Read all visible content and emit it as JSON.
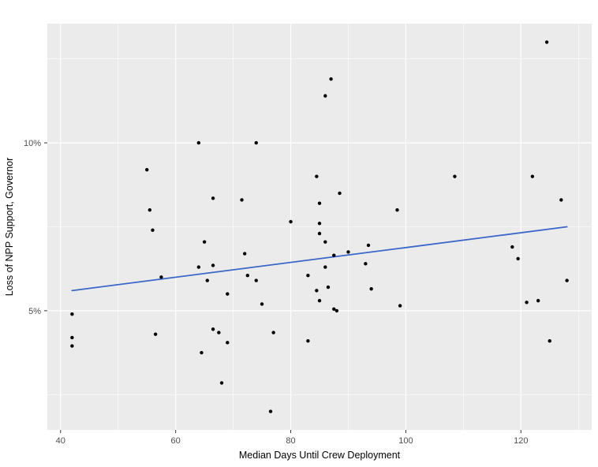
{
  "chart_data": {
    "type": "scatter",
    "title": "",
    "xlabel": "Median Days Until Crew Deployment",
    "ylabel": "Loss of NPP Support, Governor",
    "xlim": [
      37.7,
      132.3
    ],
    "ylim": [
      1.45,
      13.55
    ],
    "x_ticks": [
      40,
      60,
      80,
      100,
      120
    ],
    "x_tick_labels": [
      "40",
      "60",
      "80",
      "100",
      "120"
    ],
    "x_minor_ticks": [
      50,
      70,
      90,
      110,
      130
    ],
    "y_ticks": [
      5,
      10
    ],
    "y_tick_labels": [
      "5%",
      "10%"
    ],
    "y_minor_ticks": [
      2.5,
      7.5,
      12.5
    ],
    "grid": true,
    "legend": "none",
    "points": [
      [
        42,
        4.9
      ],
      [
        42,
        4.2
      ],
      [
        42,
        3.95
      ],
      [
        55,
        9.2
      ],
      [
        55.5,
        8.0
      ],
      [
        56,
        7.4
      ],
      [
        56.5,
        4.3
      ],
      [
        57.5,
        6.0
      ],
      [
        64,
        10.0
      ],
      [
        64,
        6.3
      ],
      [
        64.5,
        3.75
      ],
      [
        65,
        7.05
      ],
      [
        65.5,
        5.9
      ],
      [
        66.5,
        8.35
      ],
      [
        66.5,
        6.35
      ],
      [
        66.5,
        4.45
      ],
      [
        67.5,
        4.35
      ],
      [
        68,
        2.85
      ],
      [
        69,
        4.05
      ],
      [
        69,
        5.5
      ],
      [
        71.5,
        8.3
      ],
      [
        72,
        6.7
      ],
      [
        72.5,
        6.05
      ],
      [
        74,
        10.0
      ],
      [
        74,
        5.9
      ],
      [
        75,
        5.2
      ],
      [
        76.5,
        2.0
      ],
      [
        77,
        4.35
      ],
      [
        80,
        7.65
      ],
      [
        83,
        6.05
      ],
      [
        83,
        4.1
      ],
      [
        84.5,
        9.0
      ],
      [
        85,
        8.2
      ],
      [
        85,
        7.6
      ],
      [
        85,
        7.3
      ],
      [
        84.5,
        5.6
      ],
      [
        85,
        5.3
      ],
      [
        86,
        6.3
      ],
      [
        86,
        7.05
      ],
      [
        86.5,
        5.7
      ],
      [
        87,
        11.9
      ],
      [
        86,
        11.4
      ],
      [
        87.5,
        6.65
      ],
      [
        87.5,
        5.05
      ],
      [
        88,
        5.0
      ],
      [
        88.5,
        8.5
      ],
      [
        90,
        6.75
      ],
      [
        93,
        6.4
      ],
      [
        93.5,
        6.95
      ],
      [
        94,
        5.65
      ],
      [
        98.5,
        8.0
      ],
      [
        99,
        5.15
      ],
      [
        108.5,
        9.0
      ],
      [
        118.5,
        6.9
      ],
      [
        119.5,
        6.55
      ],
      [
        121,
        5.25
      ],
      [
        122,
        9.0
      ],
      [
        123,
        5.3
      ],
      [
        124.5,
        13.0
      ],
      [
        125,
        4.1
      ],
      [
        127,
        8.3
      ],
      [
        128,
        5.9
      ]
    ],
    "trend_line": {
      "x1": 42,
      "y1": 5.6,
      "x2": 128,
      "y2": 7.5
    },
    "colors": {
      "panel_bg": "#EBEBEB",
      "grid_major": "#FFFFFF",
      "grid_minor": "#FFFFFF",
      "point": "#000000",
      "trend": "#3A66C9",
      "tick": "#333333",
      "tick_text": "#4D4D4D",
      "axis_title": "#000000"
    }
  }
}
